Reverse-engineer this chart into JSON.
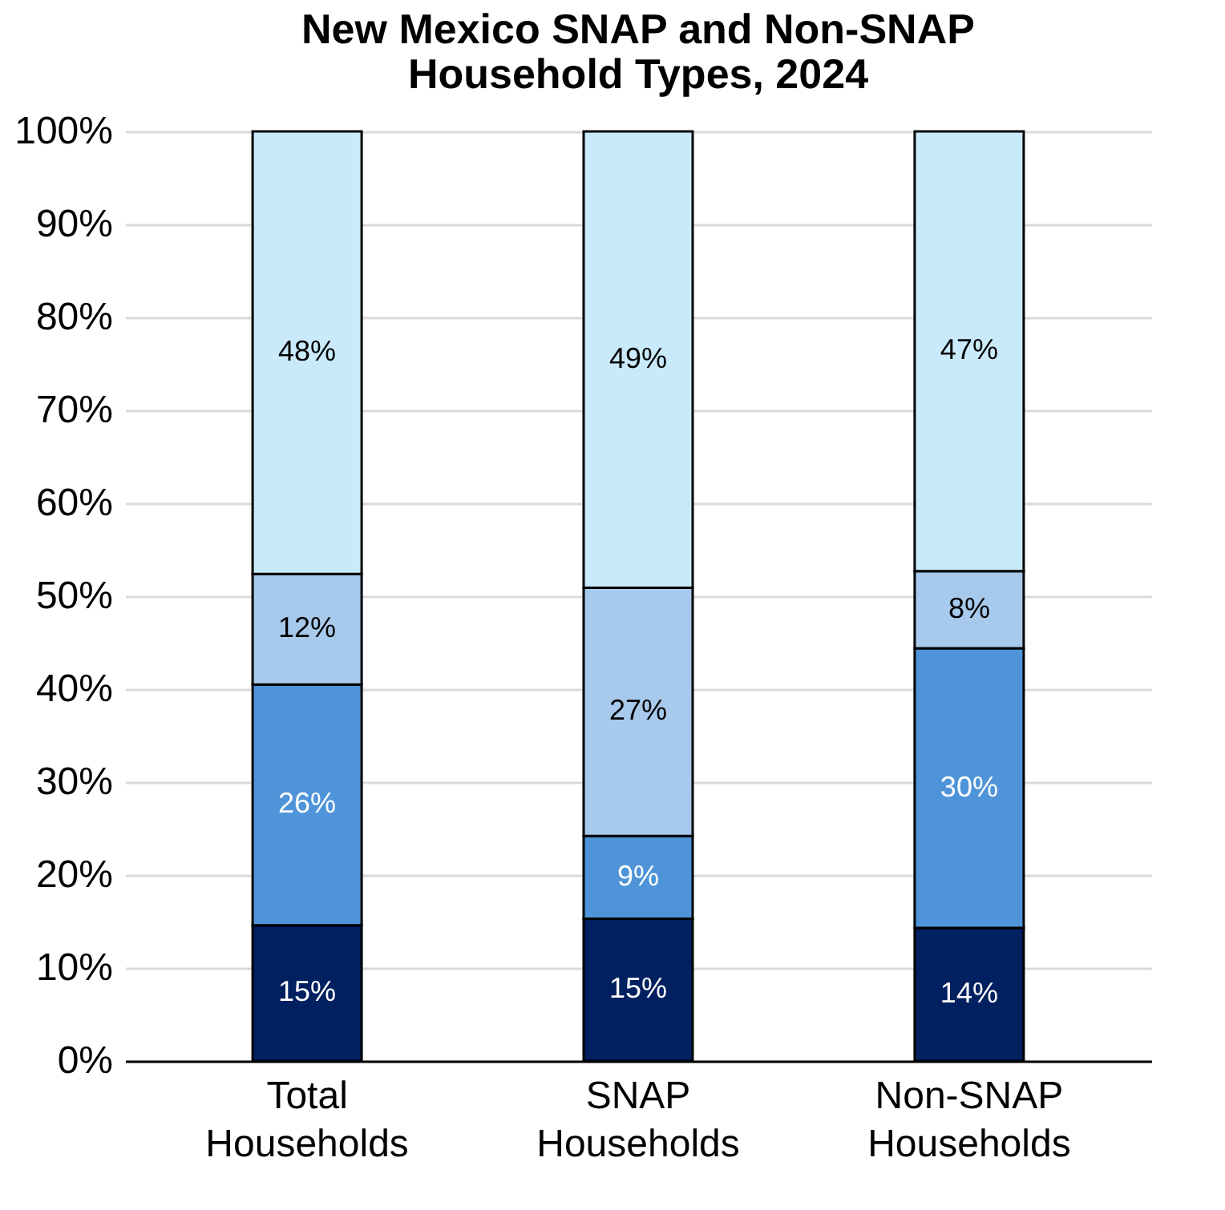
{
  "chart_data": {
    "type": "bar",
    "title": "New Mexico SNAP and Non-SNAP Household Types, 2024",
    "categories": [
      "Total Households",
      "SNAP Households",
      "Non-SNAP Households"
    ],
    "stacked": true,
    "series": [
      {
        "color": "#002060",
        "values": [
          14.6,
          15.3,
          14.3
        ],
        "value_labels": [
          "15%",
          "15%",
          "14%"
        ]
      },
      {
        "color": "#4f94d9",
        "values": [
          25.9,
          8.9,
          30.1
        ],
        "value_labels": [
          "26%",
          "9%",
          "30%"
        ]
      },
      {
        "color": "#a7c9eb",
        "values": [
          11.9,
          26.7,
          8.3
        ],
        "value_labels": [
          "12%",
          "27%",
          "8%"
        ]
      },
      {
        "color": "#c9eafa",
        "values": [
          47.6,
          49.1,
          47.3
        ],
        "value_labels": [
          "48%",
          "49%",
          "47%"
        ]
      }
    ],
    "ylim": [
      0,
      100
    ],
    "yticks": [
      {
        "value": 0,
        "label": "0%"
      },
      {
        "value": 10,
        "label": "10%"
      },
      {
        "value": 20,
        "label": "20%"
      },
      {
        "value": 30,
        "label": "30%"
      },
      {
        "value": 40,
        "label": "40%"
      },
      {
        "value": 50,
        "label": "50%"
      },
      {
        "value": 60,
        "label": "60%"
      },
      {
        "value": 70,
        "label": "70%"
      },
      {
        "value": 80,
        "label": "80%"
      },
      {
        "value": 90,
        "label": "90%"
      },
      {
        "value": 100,
        "label": "100%"
      }
    ],
    "grid": "y"
  }
}
